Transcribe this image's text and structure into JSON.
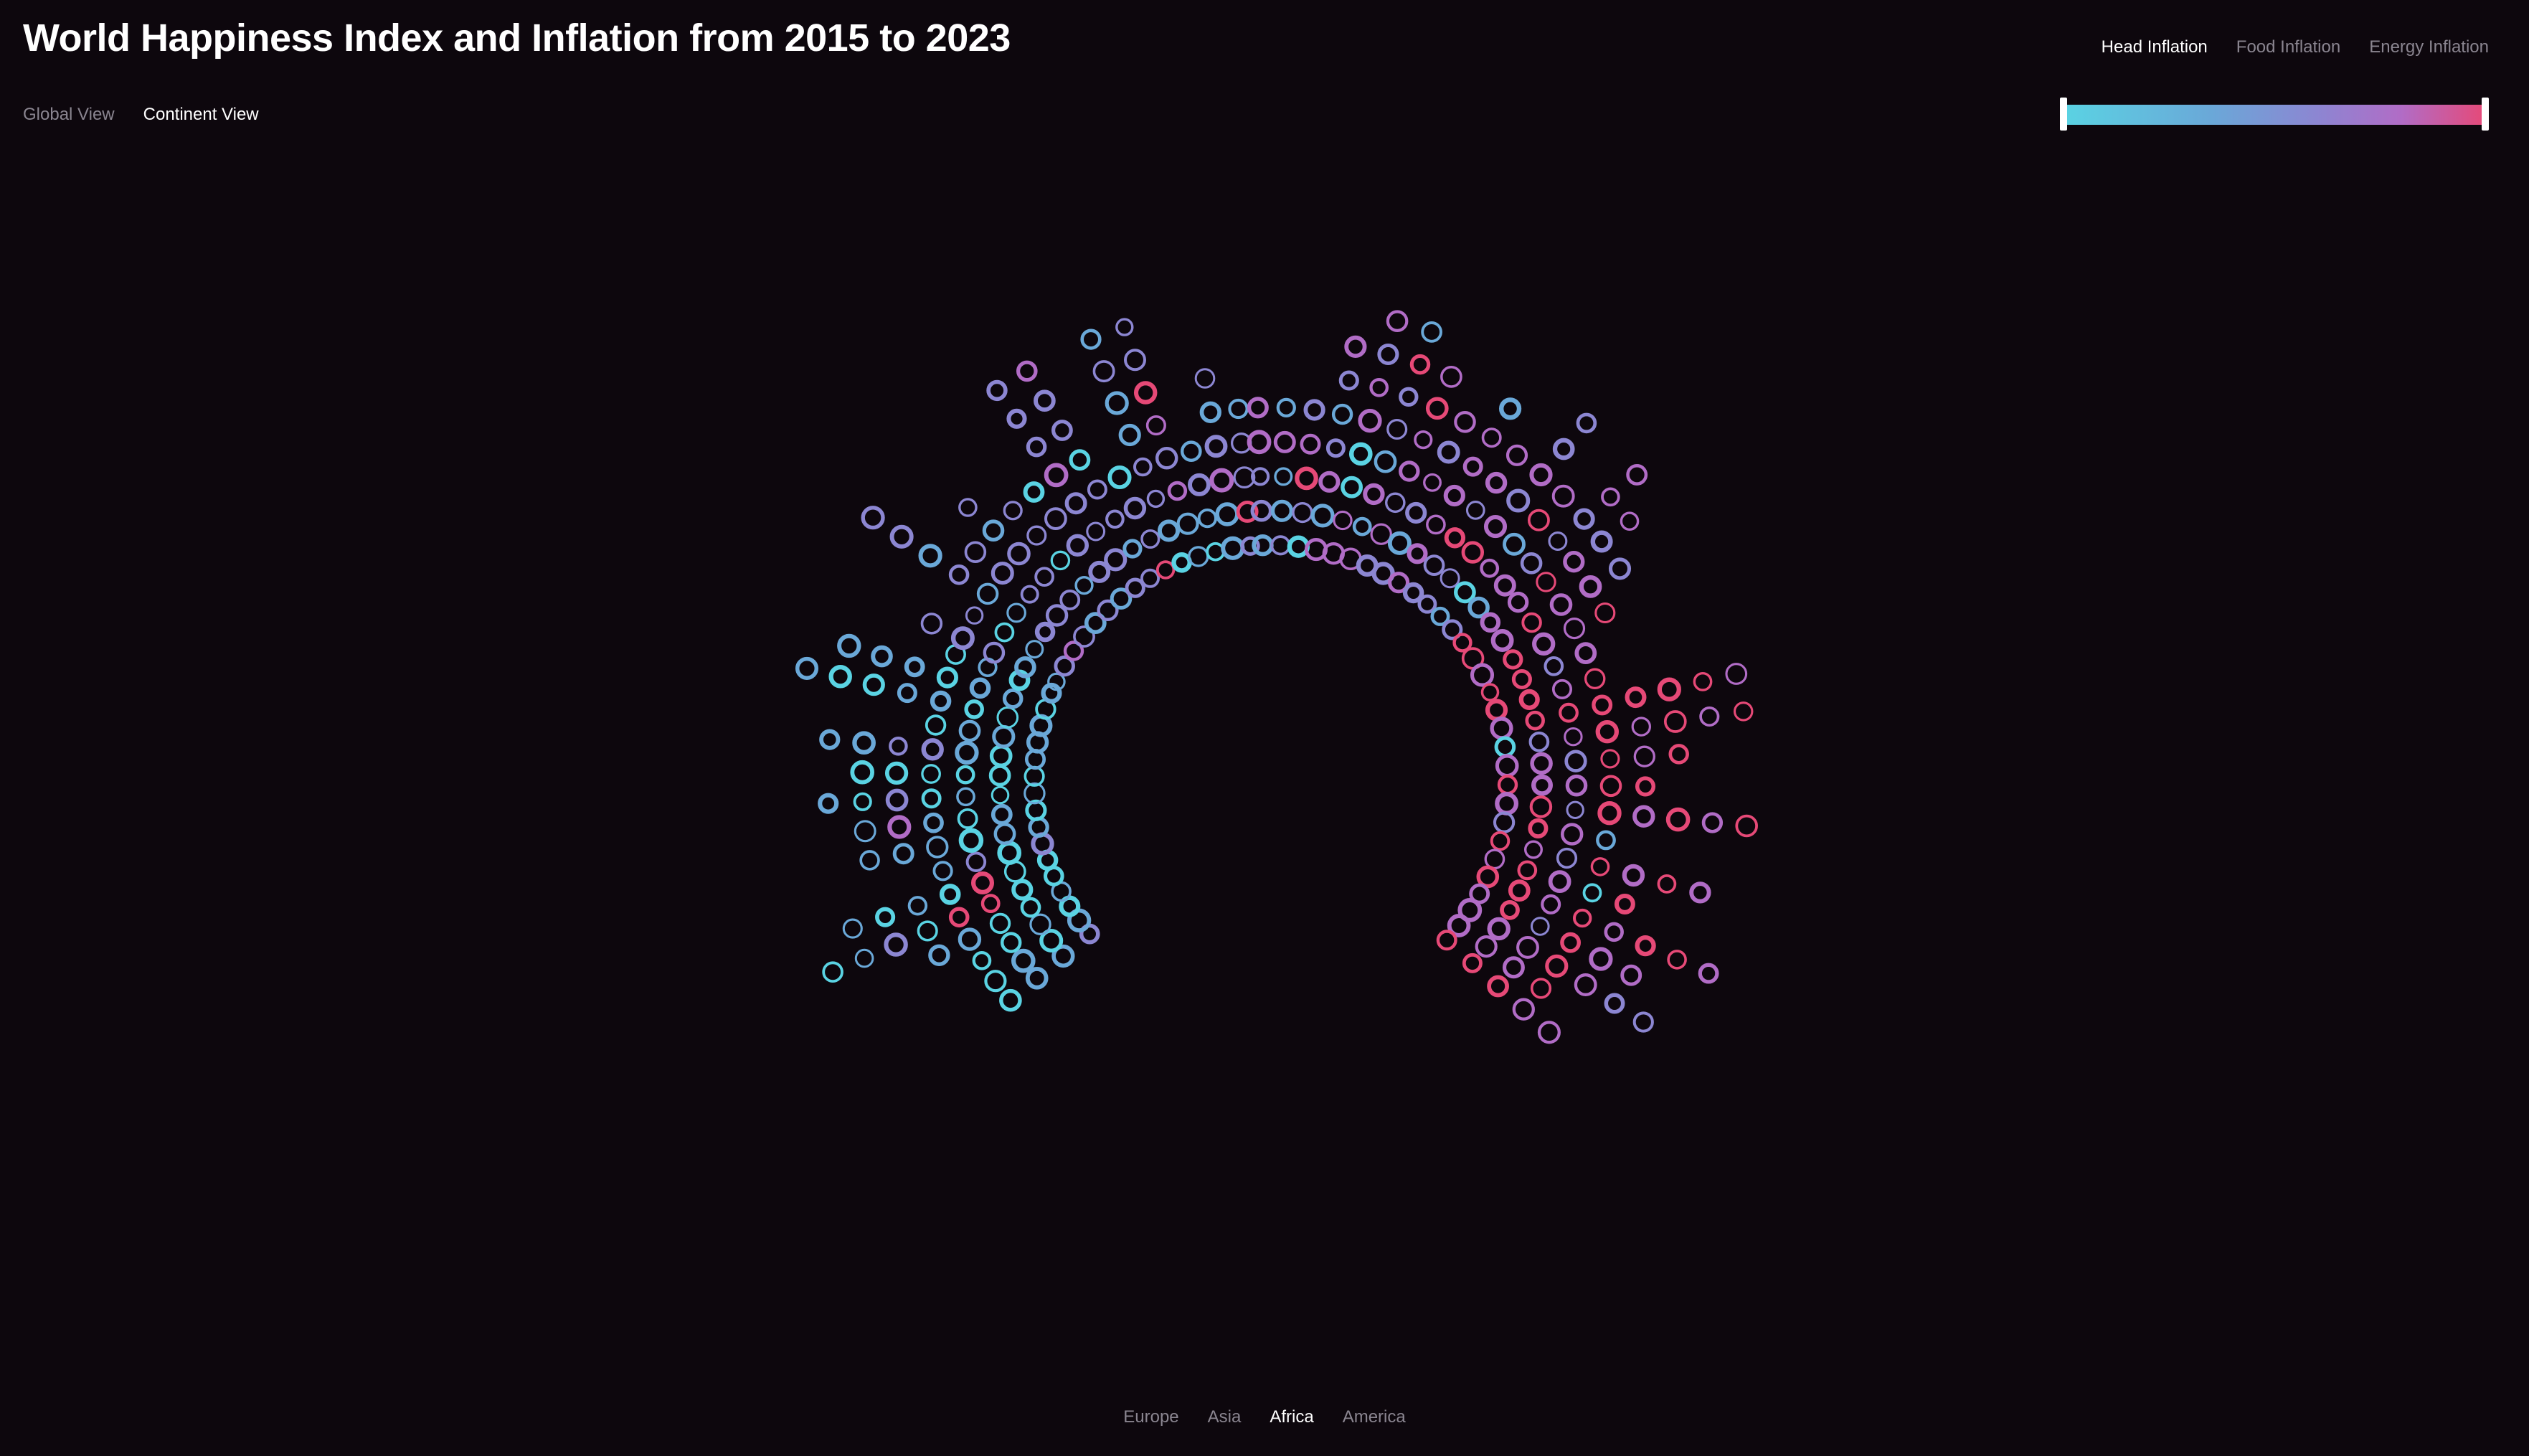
{
  "header": {
    "title": "World Happiness Index and Inflation from 2015 to 2023"
  },
  "view_switch": {
    "global_label": "Global View",
    "continent_label": "Continent View",
    "active": "continent"
  },
  "inflation_tabs": {
    "head_label": "Head Inflation",
    "food_label": "Food Inflation",
    "energy_label": "Energy Inflation",
    "active": "head"
  },
  "color_scale": {
    "colors": [
      "#5ad3e3",
      "#6aa8d8",
      "#8c86d2",
      "#b16cc6",
      "#e64977"
    ]
  },
  "region_tabs": {
    "europe_label": "Europe",
    "asia_label": "Asia",
    "africa_label": "Africa",
    "america_label": "America",
    "active": "africa"
  }
}
